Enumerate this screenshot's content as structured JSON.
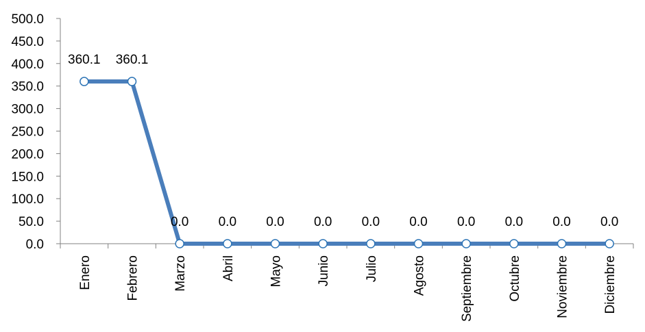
{
  "chart_data": {
    "type": "line",
    "categories": [
      "Enero",
      "Febrero",
      "Marzo",
      "Abril",
      "Mayo",
      "Junio",
      "Julio",
      "Agosto",
      "Septiembre",
      "Octubre",
      "Noviembre",
      "Diciembre"
    ],
    "values": [
      360.1,
      360.1,
      0.0,
      0.0,
      0.0,
      0.0,
      0.0,
      0.0,
      0.0,
      0.0,
      0.0,
      0.0
    ],
    "data_labels": [
      "360.1",
      "360.1",
      "0.0",
      "0.0",
      "0.0",
      "0.0",
      "0.0",
      "0.0",
      "0.0",
      "0.0",
      "0.0",
      "0.0"
    ],
    "y_ticks": [
      "0.0",
      "50.0",
      "100.0",
      "150.0",
      "200.0",
      "250.0",
      "300.0",
      "350.0",
      "400.0",
      "450.0",
      "500.0"
    ],
    "ylim": [
      0,
      500
    ],
    "grid": false,
    "legend": "none",
    "line_color": "#4A7EBB",
    "marker_fill": "#ffffff",
    "marker_stroke": "#2E75B6",
    "axis_color": "#808080"
  }
}
